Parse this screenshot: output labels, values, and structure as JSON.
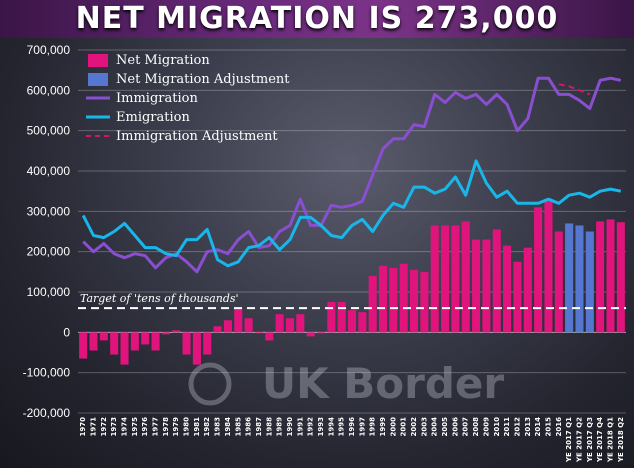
{
  "title": "NET MIGRATION IS 273,000",
  "watermark_text": "UK Border",
  "target_label": "Target of 'tens of thousands'",
  "colors": {
    "net_migration": "#e0147c",
    "net_migration_adjustment": "#5577d0",
    "immigration": "#8a4fd0",
    "emigration": "#19b6ea",
    "immigration_adjustment": "#d6146e",
    "target_line": "#ffffff"
  },
  "chart_data": {
    "type": "bar",
    "title": "NET MIGRATION IS 273,000",
    "ylim": [
      -200000,
      700000
    ],
    "y_ticks": [
      700000,
      600000,
      500000,
      400000,
      300000,
      200000,
      100000,
      0,
      -100000,
      -200000
    ],
    "y_tick_labels": [
      "700,000",
      "600,000",
      "500,000",
      "400,000",
      "300,000",
      "200,000",
      "100,000",
      "0",
      "-100,000",
      "-200,000"
    ],
    "grid": true,
    "legend_position": "top-left",
    "legend": [
      "Net Migration",
      "Net Migration Adjustment",
      "Immigration",
      "Emigration",
      "Immigration Adjustment"
    ],
    "target_value": 60000,
    "categories": [
      "1970",
      "1971",
      "1972",
      "1973",
      "1974",
      "1975",
      "1976",
      "1977",
      "1978",
      "1979",
      "1980",
      "1981",
      "1982",
      "1983",
      "1984",
      "1985",
      "1986",
      "1987",
      "1988",
      "1989",
      "1990",
      "1991",
      "1992",
      "1993",
      "1994",
      "1995",
      "1996",
      "1997",
      "1998",
      "1999",
      "2000",
      "2001",
      "2002",
      "2003",
      "2004",
      "2005",
      "2006",
      "2007",
      "2008",
      "2009",
      "2010",
      "2011",
      "2012",
      "2013",
      "2014",
      "2015",
      "2016",
      "YE 2017 Q1",
      "YE 2017 Q2",
      "YE 2017 Q3",
      "YE 2017 Q4",
      "YE 2018 Q1",
      "YE 2018 Q2"
    ],
    "series": [
      {
        "name": "Net Migration",
        "kind": "bar",
        "values": [
          -65000,
          -45000,
          -20000,
          -55000,
          -80000,
          -45000,
          -30000,
          -45000,
          -5000,
          5000,
          -55000,
          -80000,
          -55000,
          15000,
          30000,
          60000,
          35000,
          0,
          -20000,
          45000,
          35000,
          45000,
          -10000,
          0,
          75000,
          75000,
          55000,
          50000,
          140000,
          165000,
          160000,
          170000,
          155000,
          150000,
          265000,
          265000,
          265000,
          275000,
          230000,
          230000,
          255000,
          215000,
          175000,
          210000,
          310000,
          330000,
          250000,
          null,
          null,
          null,
          275000,
          280000,
          273000
        ]
      },
      {
        "name": "Net Migration Adjustment",
        "kind": "bar",
        "values": [
          null,
          null,
          null,
          null,
          null,
          null,
          null,
          null,
          null,
          null,
          null,
          null,
          null,
          null,
          null,
          null,
          null,
          null,
          null,
          null,
          null,
          null,
          null,
          null,
          null,
          null,
          null,
          null,
          null,
          null,
          null,
          null,
          null,
          null,
          null,
          null,
          null,
          null,
          null,
          null,
          null,
          null,
          null,
          null,
          null,
          null,
          null,
          270000,
          265000,
          250000,
          null,
          null,
          null
        ]
      },
      {
        "name": "Immigration",
        "kind": "line",
        "values": [
          225000,
          200000,
          220000,
          195000,
          185000,
          195000,
          190000,
          160000,
          185000,
          195000,
          175000,
          150000,
          200000,
          205000,
          195000,
          230000,
          250000,
          210000,
          215000,
          250000,
          265000,
          330000,
          265000,
          265000,
          315000,
          310000,
          315000,
          325000,
          390000,
          455000,
          480000,
          480000,
          515000,
          510000,
          590000,
          570000,
          595000,
          580000,
          590000,
          565000,
          590000,
          565000,
          500000,
          530000,
          630000,
          630000,
          590000,
          590000,
          575000,
          555000,
          625000,
          630000,
          625000
        ]
      },
      {
        "name": "Emigration",
        "kind": "line",
        "values": [
          290000,
          240000,
          235000,
          250000,
          270000,
          240000,
          210000,
          210000,
          195000,
          190000,
          230000,
          230000,
          255000,
          180000,
          165000,
          175000,
          210000,
          215000,
          235000,
          205000,
          230000,
          285000,
          285000,
          265000,
          240000,
          235000,
          265000,
          280000,
          250000,
          290000,
          320000,
          310000,
          360000,
          360000,
          345000,
          355000,
          385000,
          340000,
          425000,
          370000,
          335000,
          350000,
          320000,
          320000,
          320000,
          330000,
          320000,
          340000,
          345000,
          335000,
          350000,
          355000,
          350000
        ]
      },
      {
        "name": "Immigration Adjustment",
        "kind": "dashed-line",
        "values": [
          null,
          null,
          null,
          null,
          null,
          null,
          null,
          null,
          null,
          null,
          null,
          null,
          null,
          null,
          null,
          null,
          null,
          null,
          null,
          null,
          null,
          null,
          null,
          null,
          null,
          null,
          null,
          null,
          null,
          null,
          null,
          null,
          null,
          null,
          null,
          null,
          null,
          null,
          null,
          null,
          null,
          null,
          null,
          null,
          null,
          null,
          615000,
          610000,
          600000,
          590000,
          null,
          null,
          null
        ]
      }
    ]
  }
}
